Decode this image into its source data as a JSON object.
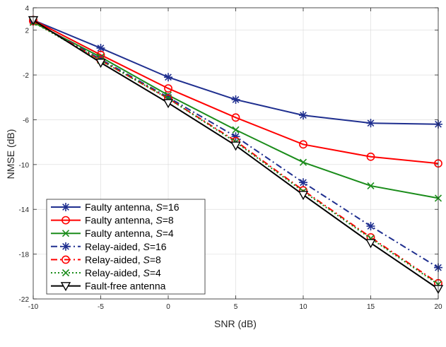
{
  "chart_data": {
    "type": "line",
    "xlabel": "SNR (dB)",
    "ylabel": "NMSE (dB)",
    "xlim": [
      -10,
      20
    ],
    "ylim": [
      -22,
      4
    ],
    "xticks": [
      -10,
      -5,
      0,
      5,
      10,
      15,
      20
    ],
    "yticks": [
      -22,
      -18,
      -14,
      -10,
      -6,
      -2,
      2,
      4
    ],
    "grid": true,
    "legend_placement": "bottom-left",
    "x": [
      -10,
      -5,
      0,
      5,
      10,
      15,
      20
    ],
    "series": [
      {
        "name_text": "Faulty antenna, ",
        "name_var": "S",
        "name_val": "=16",
        "values": [
          2.9,
          0.4,
          -2.2,
          -4.2,
          -5.6,
          -6.3,
          -6.4
        ],
        "color": "#1f2f8f",
        "dash": "solid",
        "marker": "asterisk"
      },
      {
        "name_text": "Faulty antenna, ",
        "name_var": "S",
        "name_val": "=8",
        "values": [
          2.9,
          -0.2,
          -3.2,
          -5.8,
          -8.2,
          -9.3,
          -9.9
        ],
        "color": "#ff0000",
        "dash": "solid",
        "marker": "circle"
      },
      {
        "name_text": "Faulty antenna, ",
        "name_var": "S",
        "name_val": "=4",
        "values": [
          2.7,
          -0.4,
          -3.8,
          -6.9,
          -9.8,
          -11.9,
          -13.0
        ],
        "color": "#1a8c1a",
        "dash": "solid",
        "marker": "x"
      },
      {
        "name_text": "Relay-aided, ",
        "name_var": "S",
        "name_val": "=16",
        "values": [
          2.8,
          -0.6,
          -4.0,
          -7.5,
          -11.6,
          -15.5,
          -19.2
        ],
        "color": "#1f2f8f",
        "dash": "dashdot",
        "marker": "asterisk"
      },
      {
        "name_text": "Relay-aided, ",
        "name_var": "S",
        "name_val": "=8",
        "values": [
          2.8,
          -0.7,
          -4.1,
          -7.9,
          -12.3,
          -16.5,
          -20.6
        ],
        "color": "#ff0000",
        "dash": "dashdot",
        "marker": "circle"
      },
      {
        "name_text": "Relay-aided, ",
        "name_var": "S",
        "name_val": "=4",
        "values": [
          2.7,
          -0.7,
          -4.1,
          -8.0,
          -12.4,
          -16.6,
          -20.7
        ],
        "color": "#1a8c1a",
        "dash": "dotted",
        "marker": "x"
      },
      {
        "name_text": "Fault-free antenna",
        "name_var": "",
        "name_val": "",
        "values": [
          2.9,
          -0.9,
          -4.5,
          -8.3,
          -12.7,
          -17.0,
          -21.1
        ],
        "color": "#000000",
        "dash": "solid",
        "marker": "triangle-down"
      }
    ]
  }
}
